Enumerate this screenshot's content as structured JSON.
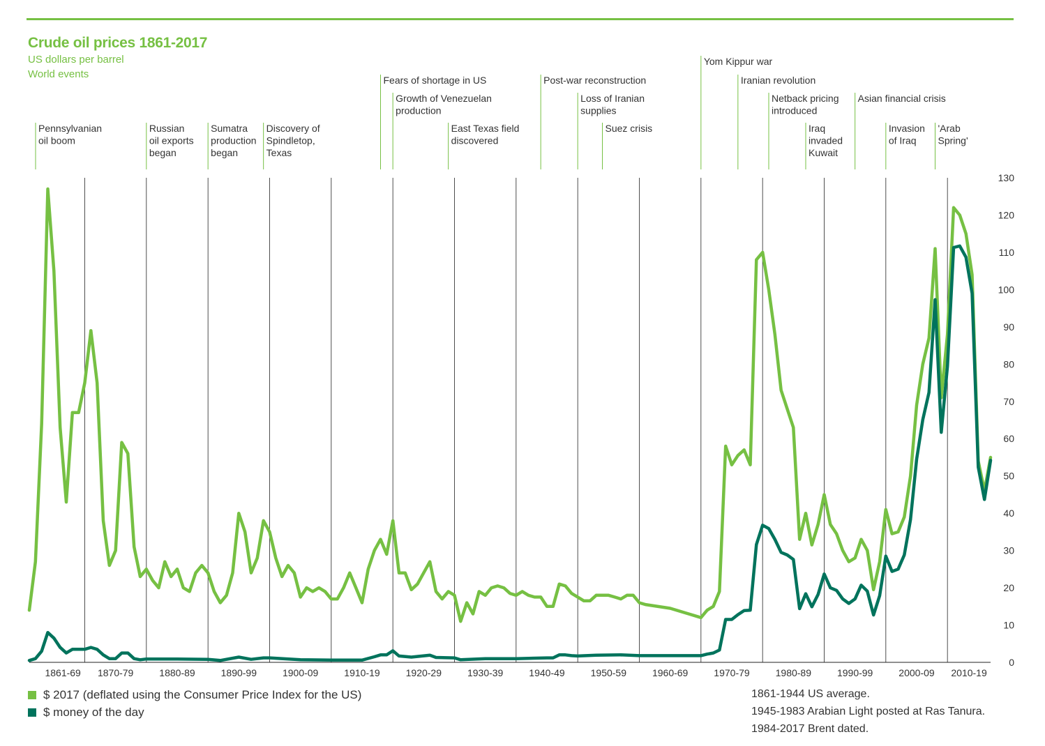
{
  "title": "Crude oil prices 1861-2017",
  "subtitle1": "US dollars per barrel",
  "subtitle2": "World events",
  "legend": {
    "real": "$ 2017 (deflated using the Consumer Price Index for the US)",
    "nominal": "$ money of the day"
  },
  "notes": [
    "1861-1944 US average.",
    "1945-1983 Arabian Light posted at Ras Tanura.",
    "1984-2017 Brent dated."
  ],
  "colors": {
    "real": "#76c043",
    "nominal": "#00735c",
    "grid": "#222222",
    "event": "#76c043",
    "accent": "#76c043"
  },
  "chart_data": {
    "type": "line",
    "x_range": [
      1861,
      2017
    ],
    "ylim": [
      0,
      130
    ],
    "y_ticks": [
      0,
      10,
      20,
      30,
      40,
      50,
      60,
      70,
      80,
      90,
      100,
      110,
      120,
      130
    ],
    "grid": true,
    "legend_position": "bottom-left",
    "x_categories": [
      "1861-69",
      "1870-79",
      "1880-89",
      "1890-99",
      "1900-09",
      "1910-19",
      "1920-29",
      "1930-39",
      "1940-49",
      "1950-59",
      "1960-69",
      "1970-79",
      "1980-89",
      "1990-99",
      "2000-09",
      "2010-19"
    ],
    "events": [
      {
        "year": 1861,
        "lines": [
          "Pennsylvanian",
          "oil boom"
        ],
        "level": 3
      },
      {
        "year": 1880,
        "lines": [
          "Russian",
          "oil exports",
          "began"
        ],
        "level": 3
      },
      {
        "year": 1890,
        "lines": [
          "Sumatra",
          "production",
          "began"
        ],
        "level": 3
      },
      {
        "year": 1899,
        "lines": [
          "Discovery of",
          "Spindletop,",
          "Texas"
        ],
        "level": 3
      },
      {
        "year": 1918,
        "lines": [
          "Fears of shortage in US"
        ],
        "level": 1
      },
      {
        "year": 1920,
        "lines": [
          "Growth of Venezuelan",
          "production"
        ],
        "level": 2
      },
      {
        "year": 1929,
        "lines": [
          "East Texas field",
          "discovered"
        ],
        "level": 3
      },
      {
        "year": 1944,
        "lines": [
          "Post-war reconstruction"
        ],
        "level": 1
      },
      {
        "year": 1950,
        "lines": [
          "Loss of Iranian",
          "supplies"
        ],
        "level": 2
      },
      {
        "year": 1954,
        "lines": [
          "Suez crisis"
        ],
        "level": 3
      },
      {
        "year": 1970,
        "lines": [
          "Yom Kippur war"
        ],
        "level": 0
      },
      {
        "year": 1976,
        "lines": [
          "Iranian revolution"
        ],
        "level": 1
      },
      {
        "year": 1981,
        "lines": [
          "Netback pricing",
          "introduced"
        ],
        "level": 2
      },
      {
        "year": 1987,
        "lines": [
          "Iraq",
          "invaded",
          "Kuwait"
        ],
        "level": 3
      },
      {
        "year": 1995,
        "lines": [
          "Asian financial crisis"
        ],
        "level": 2
      },
      {
        "year": 2000,
        "lines": [
          "Invasion",
          "of Iraq"
        ],
        "level": 3
      },
      {
        "year": 2008,
        "lines": [
          "'Arab",
          "Spring'"
        ],
        "level": 3
      }
    ],
    "series": [
      {
        "name": "$ 2017 (deflated using the Consumer Price Index for the US)",
        "points": [
          [
            1861,
            14
          ],
          [
            1862,
            27
          ],
          [
            1863,
            64
          ],
          [
            1864,
            127
          ],
          [
            1865,
            105
          ],
          [
            1866,
            63
          ],
          [
            1867,
            43
          ],
          [
            1868,
            67
          ],
          [
            1869,
            67
          ],
          [
            1870,
            75
          ],
          [
            1871,
            89
          ],
          [
            1872,
            75
          ],
          [
            1873,
            38
          ],
          [
            1874,
            26
          ],
          [
            1875,
            30
          ],
          [
            1876,
            59
          ],
          [
            1877,
            56
          ],
          [
            1878,
            31
          ],
          [
            1879,
            23
          ],
          [
            1880,
            25
          ],
          [
            1881,
            22
          ],
          [
            1882,
            20
          ],
          [
            1883,
            27
          ],
          [
            1884,
            23
          ],
          [
            1885,
            25
          ],
          [
            1886,
            20
          ],
          [
            1887,
            19
          ],
          [
            1888,
            24
          ],
          [
            1889,
            26
          ],
          [
            1890,
            24
          ],
          [
            1891,
            19
          ],
          [
            1892,
            16
          ],
          [
            1893,
            18
          ],
          [
            1894,
            24
          ],
          [
            1895,
            40
          ],
          [
            1896,
            35
          ],
          [
            1897,
            24
          ],
          [
            1898,
            28
          ],
          [
            1899,
            38
          ],
          [
            1900,
            35
          ],
          [
            1901,
            28
          ],
          [
            1902,
            23
          ],
          [
            1903,
            26
          ],
          [
            1904,
            24
          ],
          [
            1905,
            17.5
          ],
          [
            1906,
            20
          ],
          [
            1907,
            19
          ],
          [
            1908,
            20
          ],
          [
            1909,
            19
          ],
          [
            1910,
            17
          ],
          [
            1911,
            17
          ],
          [
            1912,
            20
          ],
          [
            1913,
            24
          ],
          [
            1914,
            20
          ],
          [
            1915,
            16
          ],
          [
            1916,
            25
          ],
          [
            1917,
            30
          ],
          [
            1918,
            33
          ],
          [
            1919,
            29
          ],
          [
            1920,
            38
          ],
          [
            1921,
            24
          ],
          [
            1922,
            24
          ],
          [
            1923,
            19.5
          ],
          [
            1924,
            21
          ],
          [
            1925,
            24
          ],
          [
            1926,
            27
          ],
          [
            1927,
            19
          ],
          [
            1928,
            17
          ],
          [
            1929,
            19
          ],
          [
            1930,
            18
          ],
          [
            1931,
            11
          ],
          [
            1932,
            16
          ],
          [
            1933,
            13
          ],
          [
            1934,
            19
          ],
          [
            1935,
            18
          ],
          [
            1936,
            20
          ],
          [
            1937,
            20.5
          ],
          [
            1938,
            20
          ],
          [
            1939,
            18.5
          ],
          [
            1940,
            18
          ],
          [
            1941,
            19
          ],
          [
            1942,
            18
          ],
          [
            1943,
            17.5
          ],
          [
            1944,
            17.5
          ],
          [
            1945,
            15
          ],
          [
            1946,
            15
          ],
          [
            1947,
            21
          ],
          [
            1948,
            20.5
          ],
          [
            1949,
            18.5
          ],
          [
            1950,
            17.5
          ],
          [
            1951,
            16.5
          ],
          [
            1952,
            16.5
          ],
          [
            1953,
            18
          ],
          [
            1954,
            18
          ],
          [
            1955,
            18
          ],
          [
            1956,
            17.5
          ],
          [
            1957,
            17
          ],
          [
            1958,
            18
          ],
          [
            1959,
            18
          ],
          [
            1960,
            16
          ],
          [
            1961,
            15.5
          ],
          [
            1965,
            14.5
          ],
          [
            1968,
            13
          ],
          [
            1970,
            12
          ],
          [
            1971,
            14
          ],
          [
            1972,
            15
          ],
          [
            1973,
            19
          ],
          [
            1974,
            58
          ],
          [
            1975,
            53
          ],
          [
            1976,
            55.5
          ],
          [
            1977,
            57
          ],
          [
            1978,
            53
          ],
          [
            1979,
            108
          ],
          [
            1980,
            110
          ],
          [
            1981,
            100
          ],
          [
            1982,
            88
          ],
          [
            1983,
            73
          ],
          [
            1984,
            68
          ],
          [
            1985,
            63
          ],
          [
            1986,
            33
          ],
          [
            1987,
            40
          ],
          [
            1988,
            31.5
          ],
          [
            1989,
            37
          ],
          [
            1990,
            45
          ],
          [
            1991,
            37
          ],
          [
            1992,
            34.5
          ],
          [
            1993,
            30
          ],
          [
            1994,
            27
          ],
          [
            1995,
            28
          ],
          [
            1996,
            33
          ],
          [
            1997,
            30
          ],
          [
            1998,
            19.5
          ],
          [
            1999,
            27
          ],
          [
            2000,
            41
          ],
          [
            2001,
            34.5
          ],
          [
            2002,
            35
          ],
          [
            2003,
            39
          ],
          [
            2004,
            50
          ],
          [
            2005,
            69
          ],
          [
            2006,
            80
          ],
          [
            2007,
            87
          ],
          [
            2008,
            111
          ],
          [
            2009,
            71
          ],
          [
            2010,
            88
          ],
          [
            2011,
            122
          ],
          [
            2012,
            120
          ],
          [
            2013,
            115
          ],
          [
            2014,
            104
          ],
          [
            2015,
            54
          ],
          [
            2016,
            46
          ],
          [
            2017,
            55
          ]
        ]
      },
      {
        "name": "$ money of the day",
        "points": [
          [
            1861,
            0.5
          ],
          [
            1862,
            1
          ],
          [
            1863,
            3
          ],
          [
            1864,
            8
          ],
          [
            1865,
            6.5
          ],
          [
            1866,
            4
          ],
          [
            1867,
            2.5
          ],
          [
            1868,
            3.5
          ],
          [
            1869,
            3.5
          ],
          [
            1870,
            3.5
          ],
          [
            1871,
            4
          ],
          [
            1872,
            3.5
          ],
          [
            1873,
            2
          ],
          [
            1874,
            1
          ],
          [
            1875,
            1
          ],
          [
            1876,
            2.5
          ],
          [
            1877,
            2.5
          ],
          [
            1878,
            1
          ],
          [
            1879,
            0.7
          ],
          [
            1880,
            0.9
          ],
          [
            1885,
            0.9
          ],
          [
            1890,
            0.8
          ],
          [
            1892,
            0.5
          ],
          [
            1895,
            1.4
          ],
          [
            1897,
            0.8
          ],
          [
            1899,
            1.2
          ],
          [
            1900,
            1.2
          ],
          [
            1905,
            0.7
          ],
          [
            1910,
            0.6
          ],
          [
            1915,
            0.6
          ],
          [
            1917,
            1.5
          ],
          [
            1918,
            2
          ],
          [
            1919,
            2
          ],
          [
            1920,
            3.1
          ],
          [
            1921,
            1.7
          ],
          [
            1923,
            1.4
          ],
          [
            1926,
            1.9
          ],
          [
            1927,
            1.3
          ],
          [
            1930,
            1.2
          ],
          [
            1931,
            0.7
          ],
          [
            1935,
            1
          ],
          [
            1940,
            1
          ],
          [
            1945,
            1.2
          ],
          [
            1946,
            1.2
          ],
          [
            1947,
            2
          ],
          [
            1948,
            2
          ],
          [
            1949,
            1.8
          ],
          [
            1950,
            1.7
          ],
          [
            1953,
            1.9
          ],
          [
            1957,
            2
          ],
          [
            1960,
            1.8
          ],
          [
            1965,
            1.8
          ],
          [
            1970,
            1.8
          ],
          [
            1971,
            2.2
          ],
          [
            1972,
            2.5
          ],
          [
            1973,
            3.3
          ],
          [
            1974,
            11.5
          ],
          [
            1975,
            11.5
          ],
          [
            1976,
            12.8
          ],
          [
            1977,
            13.9
          ],
          [
            1978,
            14
          ],
          [
            1979,
            31.6
          ],
          [
            1980,
            36.8
          ],
          [
            1981,
            35.9
          ],
          [
            1982,
            33
          ],
          [
            1983,
            29.5
          ],
          [
            1984,
            28.8
          ],
          [
            1985,
            27.6
          ],
          [
            1986,
            14.4
          ],
          [
            1987,
            18.4
          ],
          [
            1988,
            14.9
          ],
          [
            1989,
            18.2
          ],
          [
            1990,
            23.7
          ],
          [
            1991,
            20
          ],
          [
            1992,
            19.3
          ],
          [
            1993,
            17
          ],
          [
            1994,
            15.8
          ],
          [
            1995,
            17
          ],
          [
            1996,
            20.7
          ],
          [
            1997,
            19.1
          ],
          [
            1998,
            12.7
          ],
          [
            1999,
            17.9
          ],
          [
            2000,
            28.5
          ],
          [
            2001,
            24.4
          ],
          [
            2002,
            25
          ],
          [
            2003,
            28.8
          ],
          [
            2004,
            38.3
          ],
          [
            2005,
            54.5
          ],
          [
            2006,
            65.1
          ],
          [
            2007,
            72.4
          ],
          [
            2008,
            97.3
          ],
          [
            2009,
            61.7
          ],
          [
            2010,
            79.5
          ],
          [
            2011,
            111.3
          ],
          [
            2012,
            111.7
          ],
          [
            2013,
            108.7
          ],
          [
            2014,
            99
          ],
          [
            2015,
            52.4
          ],
          [
            2016,
            43.7
          ],
          [
            2017,
            54.2
          ]
        ]
      }
    ]
  }
}
